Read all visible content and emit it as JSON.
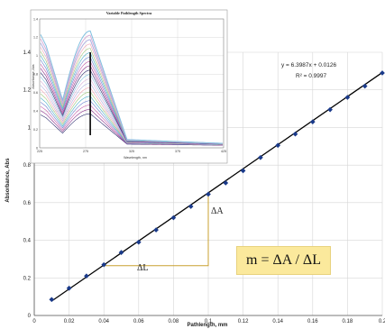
{
  "chart_data": [
    {
      "type": "scatter",
      "title": "",
      "xlabel": "Pathlength, mm",
      "ylabel": "Absorbance, Abs",
      "xlim": [
        0,
        0.2
      ],
      "ylim": [
        0,
        1.4
      ],
      "x_ticks": [
        "0",
        "0.02",
        "0.04",
        "0.06",
        "0.08",
        "0.1",
        "0.12",
        "0.14",
        "0.16",
        "0.18",
        "0.2"
      ],
      "y_ticks": [
        "0",
        "0.2",
        "0.4",
        "0.6",
        "0.8",
        "1",
        "1.2",
        "1.4"
      ],
      "grid": true,
      "series": [
        {
          "x": [
            0.01,
            0.02,
            0.03,
            0.04,
            0.05,
            0.06,
            0.07,
            0.08,
            0.09,
            0.1,
            0.11,
            0.12,
            0.13,
            0.14,
            0.15,
            0.16,
            0.17,
            0.18,
            0.19,
            0.2
          ],
          "values": [
            0.085,
            0.145,
            0.21,
            0.27,
            0.335,
            0.39,
            0.455,
            0.52,
            0.58,
            0.645,
            0.705,
            0.77,
            0.84,
            0.905,
            0.965,
            1.03,
            1.095,
            1.16,
            1.22,
            1.29
          ]
        }
      ],
      "trendline": {
        "slope": 6.3987,
        "intercept": 0.0126
      },
      "annotations": {
        "equation": "y = 6.3987x + 0.0126",
        "r_squared": "R² = 0.9997",
        "delta_a": "ΔA",
        "delta_l": "ΔL",
        "formula": "m = ΔA / ΔL",
        "triangle": {
          "x_start": 0.04,
          "x_end": 0.1,
          "y_low": 0.265,
          "y_high": 0.65
        }
      }
    },
    {
      "type": "line",
      "title": "Variable Pathlength Spectra",
      "xlabel": "Wavelength, nm",
      "ylabel": "Absorbance, Abs",
      "xlim": [
        225,
        425
      ],
      "ylim": [
        0,
        1.4
      ],
      "x_ticks": [
        "225",
        "275",
        "325",
        "375",
        "425"
      ],
      "y_ticks": [
        "0",
        "0.2",
        "0.4",
        "0.6",
        "0.8",
        "1",
        "1.2",
        "1.4"
      ],
      "marker_line_x": 280,
      "curve_count": 20,
      "peak_value_top_curve": 1.27,
      "colors": [
        "#2b2b6e",
        "#8a2f8a",
        "#c45aa8",
        "#6a7fd0",
        "#4bb0c8",
        "#9fc67a",
        "#f0a0b0",
        "#b0b0e0",
        "#d8b0d8",
        "#80c0e0"
      ]
    }
  ],
  "formula_box": {
    "text": "m = ΔA / ΔL",
    "background": "#fbe99c"
  },
  "colors": {
    "trendline": "#000000",
    "points": "#1a3a8a",
    "triangle": "#c8a030"
  }
}
